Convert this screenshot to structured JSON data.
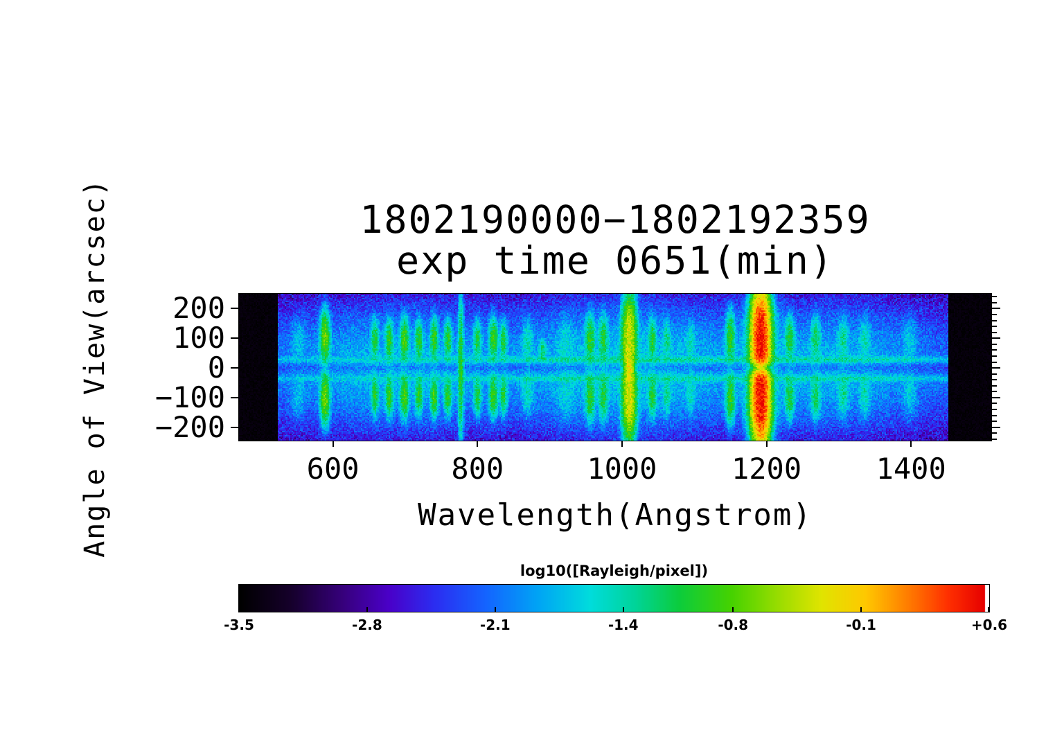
{
  "figure": {
    "title_line1": "1802190000−1802192359",
    "title_line2": "exp time 0651(min)",
    "x_axis_label": "Wavelength(Angstrom)",
    "y_axis_label": "Angle of View(arcsec)",
    "colorbar_title": "log10([Rayleigh/pixel])",
    "background_color": "#ffffff",
    "text_color": "#000000"
  },
  "chart_data": {
    "type": "heatmap",
    "title": "1802190000−1802192359",
    "subtitle": "exp time 0651(min)",
    "xlabel": "Wavelength(Angstrom)",
    "ylabel": "Angle of View(arcsec)",
    "zlabel": "log10([Rayleigh/pixel])",
    "x_range": [
      470,
      1511
    ],
    "y_range": [
      -245,
      250
    ],
    "z_range": [
      -3.5,
      0.6
    ],
    "x_ticks": [
      600,
      800,
      1000,
      1200,
      1400
    ],
    "x_tick_labels": [
      "600",
      "800",
      "1000",
      "1200",
      "1400"
    ],
    "y_ticks": [
      200,
      100,
      0,
      -100,
      -200
    ],
    "y_tick_labels": [
      "200",
      "100",
      "0",
      "−100",
      "−200"
    ],
    "colorbar_ticks": [
      -3.5,
      -2.8,
      -2.1,
      -1.4,
      -0.8,
      -0.1,
      0.6
    ],
    "colorbar_tick_labels": [
      "-3.5",
      "-2.8",
      "-2.1",
      "-1.4",
      "-0.8",
      "-0.1",
      "+0.6"
    ],
    "data_wavelength_range": [
      523,
      1452
    ],
    "background_level": -2.95,
    "noise": {
      "seed": 7,
      "base_spread": 1.0,
      "speckle": 0.45
    },
    "diffuse_glow": {
      "peak": -1.74,
      "base": 0.3,
      "profile_sigma": 168,
      "center_dip": 0.45,
      "center_dip_sigma": 16,
      "wl_bumps": [
        {
          "wl": 690,
          "amp": 0.6,
          "sigma": 140
        },
        {
          "wl": 1010,
          "amp": 0.85,
          "sigma": 130
        },
        {
          "wl": 1290,
          "amp": 0.55,
          "sigma": 110
        }
      ]
    },
    "horizontal_lanes": {
      "base": 0.35,
      "wl_bumps": [
        {
          "wl": 1010,
          "amp": 0.7,
          "sigma": 260
        },
        {
          "wl": 1310,
          "amp": 0.5,
          "sigma": 130
        }
      ],
      "positions": [
        {
          "a": 28,
          "sigma": 9,
          "peak": -1.6
        },
        {
          "a": -36,
          "sigma": 9,
          "peak": -1.65
        }
      ]
    },
    "emission_lines": [
      {
        "wl": 552,
        "sig": 8,
        "peak": -1.95,
        "shape": "lobes",
        "c": 95,
        "s": 60
      },
      {
        "wl": 589,
        "sig": 5,
        "peak": -0.7,
        "shape": "lobes",
        "c": 105,
        "s": 62
      },
      {
        "wl": 658,
        "sig": 4,
        "peak": -1.05,
        "shape": "lobes",
        "c": 95,
        "s": 48
      },
      {
        "wl": 678,
        "sig": 4,
        "peak": -0.95,
        "shape": "lobes",
        "c": 95,
        "s": 50
      },
      {
        "wl": 699,
        "sig": 4.5,
        "peak": -0.85,
        "shape": "lobes",
        "c": 98,
        "s": 52
      },
      {
        "wl": 719,
        "sig": 4,
        "peak": -1.0,
        "shape": "lobes",
        "c": 95,
        "s": 48
      },
      {
        "wl": 740,
        "sig": 4,
        "peak": -0.9,
        "shape": "lobes",
        "c": 98,
        "s": 50
      },
      {
        "wl": 759,
        "sig": 4,
        "peak": -1.0,
        "shape": "lobes",
        "c": 95,
        "s": 48
      },
      {
        "wl": 777,
        "sig": 3,
        "peak": -1.0,
        "shape": "full",
        "c": 0,
        "s": 185
      },
      {
        "wl": 800,
        "sig": 4,
        "peak": -1.05,
        "shape": "lobes",
        "c": 95,
        "s": 48
      },
      {
        "wl": 822,
        "sig": 4.5,
        "peak": -0.9,
        "shape": "lobes",
        "c": 98,
        "s": 52
      },
      {
        "wl": 836,
        "sig": 4,
        "peak": -1.1,
        "shape": "lobes",
        "c": 95,
        "s": 48
      },
      {
        "wl": 869,
        "sig": 6,
        "peak": -1.55,
        "shape": "lobes",
        "c": 90,
        "s": 55
      },
      {
        "wl": 890,
        "sig": 4,
        "peak": -1.3,
        "shape": "upper",
        "c": 60,
        "s": 30
      },
      {
        "wl": 922,
        "sig": 10,
        "peak": -1.85,
        "shape": "lobes",
        "c": 90,
        "s": 70
      },
      {
        "wl": 956,
        "sig": 5,
        "peak": -1.0,
        "shape": "lobes",
        "c": 100,
        "s": 60
      },
      {
        "wl": 974,
        "sig": 5,
        "peak": -1.1,
        "shape": "lobes",
        "c": 100,
        "s": 58
      },
      {
        "wl": 1010,
        "sig": 7,
        "peak": -0.35,
        "shape": "tall",
        "c": 115,
        "s": 95,
        "dip": 0.55
      },
      {
        "wl": 1010,
        "sig": 4,
        "peak": -0.25,
        "shape": "center",
        "c": 0,
        "s": 26
      },
      {
        "wl": 1042,
        "sig": 4,
        "peak": -1.05,
        "shape": "lobes",
        "c": 95,
        "s": 52
      },
      {
        "wl": 1062,
        "sig": 4,
        "peak": -1.4,
        "shape": "lobes",
        "c": 95,
        "s": 50
      },
      {
        "wl": 1095,
        "sig": 5,
        "peak": -1.6,
        "shape": "lobes",
        "c": 90,
        "s": 50
      },
      {
        "wl": 1150,
        "sig": 5,
        "peak": -0.95,
        "shape": "lobes",
        "c": 105,
        "s": 65
      },
      {
        "wl": 1192,
        "sig": 16,
        "peak": -1.05,
        "shape": "tall",
        "c": 120,
        "s": 105,
        "dip": 0.4
      },
      {
        "wl": 1192,
        "sig": 8.5,
        "peak": 0.55,
        "shape": "tall",
        "c": 112,
        "s": 100,
        "dip": 0.93
      },
      {
        "wl": 1192,
        "sig": 5,
        "peak": -0.6,
        "shape": "center",
        "c": 0,
        "s": 20
      },
      {
        "wl": 1232,
        "sig": 5,
        "peak": -1.05,
        "shape": "lobes",
        "c": 100,
        "s": 55
      },
      {
        "wl": 1268,
        "sig": 5,
        "peak": -1.2,
        "shape": "lobes",
        "c": 100,
        "s": 55
      },
      {
        "wl": 1306,
        "sig": 6,
        "peak": -1.45,
        "shape": "lobes",
        "c": 95,
        "s": 55
      },
      {
        "wl": 1336,
        "sig": 6,
        "peak": -1.55,
        "shape": "lobes",
        "c": 95,
        "s": 55
      },
      {
        "wl": 1398,
        "sig": 8,
        "peak": -1.8,
        "shape": "lobes",
        "c": 95,
        "s": 60
      }
    ],
    "colormap": [
      [
        0.0,
        "#000000"
      ],
      [
        0.07,
        "#16002c"
      ],
      [
        0.14,
        "#37007e"
      ],
      [
        0.2,
        "#4a00c8"
      ],
      [
        0.26,
        "#2c2cf0"
      ],
      [
        0.33,
        "#1464ff"
      ],
      [
        0.4,
        "#00a4f5"
      ],
      [
        0.47,
        "#00dcdc"
      ],
      [
        0.53,
        "#00d49a"
      ],
      [
        0.59,
        "#0ccc3c"
      ],
      [
        0.66,
        "#46d200"
      ],
      [
        0.72,
        "#96dc00"
      ],
      [
        0.78,
        "#e0e400"
      ],
      [
        0.84,
        "#ffc800"
      ],
      [
        0.9,
        "#ff7800"
      ],
      [
        0.95,
        "#ff3000"
      ],
      [
        1.0,
        "#e60000"
      ]
    ]
  }
}
